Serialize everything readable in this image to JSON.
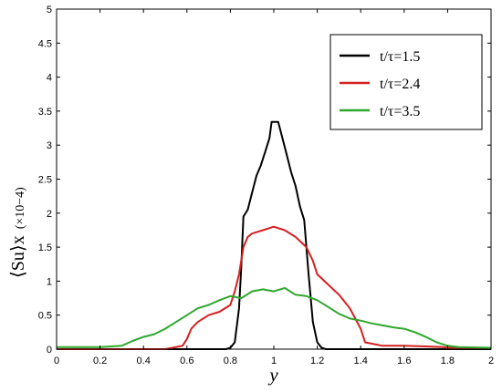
{
  "chart_data": {
    "type": "line",
    "title": "",
    "xlabel": "y",
    "ylabel": "⟨Su⟩x",
    "ylabel_unit": "(×10−4)",
    "xlim": [
      0,
      2
    ],
    "ylim": [
      0,
      5
    ],
    "xticks": [
      "0",
      "0.2",
      "0.4",
      "0.6",
      "0.8",
      "1",
      "1.2",
      "1.4",
      "1.6",
      "1.8",
      "2"
    ],
    "yticks": [
      "0",
      "0.5",
      "1",
      "1.5",
      "2",
      "2.5",
      "3",
      "3.5",
      "4",
      "4.5",
      "5"
    ],
    "grid": false,
    "legend_position": "top-right",
    "series": [
      {
        "name": "t/τ=1.5",
        "color": "#000000",
        "x": [
          0,
          0.78,
          0.8,
          0.82,
          0.84,
          0.85,
          0.86,
          0.88,
          0.9,
          0.92,
          0.94,
          0.96,
          0.98,
          0.99,
          1.0,
          1.02,
          1.04,
          1.06,
          1.08,
          1.1,
          1.12,
          1.14,
          1.16,
          1.18,
          1.2,
          1.22,
          1.24,
          2.0
        ],
        "y": [
          0,
          0,
          0.02,
          0.1,
          0.6,
          1.2,
          1.95,
          2.05,
          2.3,
          2.55,
          2.7,
          2.9,
          3.1,
          3.34,
          3.34,
          3.34,
          3.1,
          2.85,
          2.6,
          2.4,
          2.1,
          1.9,
          1.1,
          0.4,
          0.1,
          0.02,
          0,
          0
        ]
      },
      {
        "name": "t/τ=2.4",
        "color": "#d42020",
        "x": [
          0,
          0.3,
          0.5,
          0.58,
          0.6,
          0.62,
          0.65,
          0.7,
          0.75,
          0.8,
          0.82,
          0.84,
          0.86,
          0.88,
          0.9,
          0.95,
          1.0,
          1.05,
          1.1,
          1.15,
          1.18,
          1.2,
          1.25,
          1.3,
          1.35,
          1.4,
          1.42,
          1.5,
          1.6,
          1.7,
          1.78,
          1.8,
          2.0
        ],
        "y": [
          0,
          0,
          0,
          0.05,
          0.15,
          0.3,
          0.4,
          0.5,
          0.55,
          0.65,
          0.85,
          1.1,
          1.5,
          1.65,
          1.7,
          1.75,
          1.8,
          1.75,
          1.65,
          1.5,
          1.3,
          1.1,
          0.95,
          0.8,
          0.6,
          0.3,
          0.1,
          0.05,
          0.05,
          0.04,
          0.03,
          0.02,
          0.02
        ]
      },
      {
        "name": "t/τ=3.5",
        "color": "#2ea82e",
        "x": [
          0,
          0.2,
          0.3,
          0.35,
          0.4,
          0.45,
          0.5,
          0.55,
          0.6,
          0.65,
          0.7,
          0.75,
          0.8,
          0.85,
          0.9,
          0.95,
          1.0,
          1.05,
          1.1,
          1.15,
          1.2,
          1.25,
          1.3,
          1.35,
          1.4,
          1.45,
          1.5,
          1.55,
          1.6,
          1.65,
          1.7,
          1.75,
          1.8,
          1.85,
          2.0
        ],
        "y": [
          0.03,
          0.03,
          0.05,
          0.12,
          0.18,
          0.22,
          0.3,
          0.4,
          0.5,
          0.6,
          0.65,
          0.72,
          0.78,
          0.75,
          0.85,
          0.88,
          0.85,
          0.9,
          0.8,
          0.78,
          0.72,
          0.62,
          0.52,
          0.45,
          0.42,
          0.38,
          0.35,
          0.32,
          0.3,
          0.25,
          0.18,
          0.1,
          0.05,
          0.03,
          0.02
        ]
      }
    ]
  }
}
